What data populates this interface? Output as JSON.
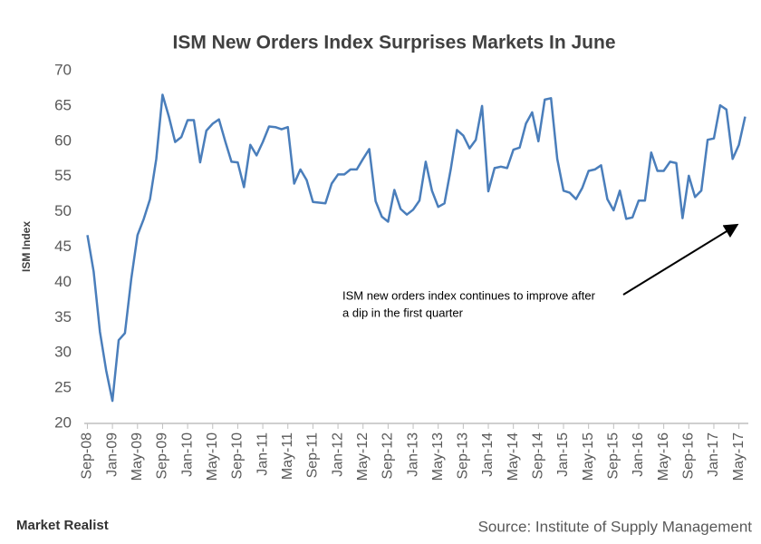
{
  "chart_data": {
    "type": "line",
    "title": "ISM  New  Orders  Index  Surprises  Markets  In  June",
    "y_label": "ISM Index",
    "categories": [
      "Sep-08",
      null,
      null,
      null,
      "Jan-09",
      null,
      null,
      null,
      "May-09",
      null,
      null,
      null,
      "Sep-09",
      null,
      null,
      null,
      "Jan-10",
      null,
      null,
      null,
      "May-10",
      null,
      null,
      null,
      "Sep-10",
      null,
      null,
      null,
      "Jan-11",
      null,
      null,
      null,
      "May-11",
      null,
      null,
      null,
      "Sep-11",
      null,
      null,
      null,
      "Jan-12",
      null,
      null,
      null,
      "May-12",
      null,
      null,
      null,
      "Sep-12",
      null,
      null,
      null,
      "Jan-13",
      null,
      null,
      null,
      "May-13",
      null,
      null,
      null,
      "Sep-13",
      null,
      null,
      null,
      "Jan-14",
      null,
      null,
      null,
      "May-14",
      null,
      null,
      null,
      "Sep-14",
      null,
      null,
      null,
      "Jan-15",
      null,
      null,
      null,
      "May-15",
      null,
      null,
      null,
      "Sep-15",
      null,
      null,
      null,
      "Jan-16",
      null,
      null,
      null,
      "May-16",
      null,
      null,
      null,
      "Sep-16",
      null,
      null,
      null,
      "Jan-17",
      null,
      null,
      null,
      "May-17",
      null
    ],
    "values": [
      46.7,
      41.5,
      33,
      27.5,
      23.2,
      31.8,
      32.8,
      40.5,
      46.7,
      49,
      51.8,
      57.5,
      66.6,
      63.5,
      59.9,
      60.6,
      63,
      63,
      57,
      61.5,
      62.5,
      63.1,
      60,
      57.1,
      57,
      53.5,
      59.5,
      58,
      59.9,
      62.1,
      62,
      61.7,
      62,
      54,
      56,
      54.5,
      51.4,
      51.3,
      51.2,
      54,
      55.3,
      55.3,
      56,
      56,
      57.5,
      58.9,
      51.5,
      49.3,
      48.6,
      53.1,
      50.4,
      49.6,
      50.3,
      51.6,
      57.1,
      53,
      50.7,
      51.2,
      56,
      61.6,
      60.8,
      59,
      60.2,
      65,
      52.9,
      56.2,
      56.4,
      56.2,
      58.8,
      59.1,
      62.5,
      64.1,
      60,
      65.9,
      66.1,
      57.5,
      53,
      52.7,
      51.8,
      53.4,
      55.8,
      56,
      56.6,
      51.8,
      50.2,
      53,
      49,
      49.2,
      51.6,
      51.6,
      58.4,
      55.8,
      55.8,
      57.1,
      56.9,
      49.1,
      55.1,
      52.1,
      53,
      60.2,
      60.4,
      65.1,
      64.5,
      57.5,
      59.5,
      63.5
    ],
    "color": "#4a7ebb",
    "ylim": [
      20,
      70
    ],
    "yticks": [
      20,
      25,
      30,
      35,
      40,
      45,
      50,
      55,
      60,
      65,
      70
    ],
    "grid": false,
    "annotation": [
      "ISM new orders index continues to improve after",
      "a dip in the first quarter"
    ],
    "brand": "Market Realist",
    "source": "Source: Institute of Supply Management"
  }
}
